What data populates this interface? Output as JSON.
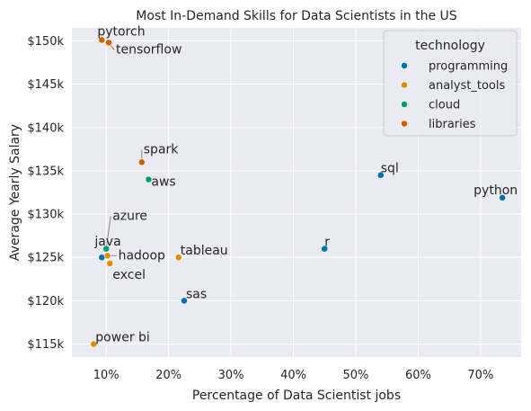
{
  "chart_data": {
    "type": "scatter",
    "title": "Most In-Demand Skills for Data Scientists in the US",
    "xlabel": "Percentage of Data Scientist jobs",
    "ylabel": "Average Yearly Salary",
    "xlim": [
      0.045,
      0.765
    ],
    "ylim": [
      113500,
      151500
    ],
    "x_ticks": [
      0.1,
      0.2,
      0.3,
      0.4,
      0.5,
      0.6,
      0.7
    ],
    "x_tick_labels": [
      "10%",
      "20%",
      "30%",
      "40%",
      "50%",
      "60%",
      "70%"
    ],
    "y_ticks": [
      115000,
      120000,
      125000,
      130000,
      135000,
      140000,
      145000,
      150000
    ],
    "y_tick_labels": [
      "$115k",
      "$120k",
      "$125k",
      "$130k",
      "$135k",
      "$140k",
      "$145k",
      "$150k"
    ],
    "grid": true,
    "legend": {
      "title": "technology",
      "placement": "top-right",
      "entries": [
        {
          "name": "programming",
          "color": "#0173b2"
        },
        {
          "name": "analyst_tools",
          "color": "#de8f05"
        },
        {
          "name": "cloud",
          "color": "#029e73"
        },
        {
          "name": "libraries",
          "color": "#d55e00"
        }
      ]
    },
    "points": [
      {
        "skill": "python",
        "technology": "programming",
        "x": 0.735,
        "y": 131900
      },
      {
        "skill": "sql",
        "technology": "programming",
        "x": 0.54,
        "y": 134500
      },
      {
        "skill": "r",
        "technology": "programming",
        "x": 0.45,
        "y": 126000
      },
      {
        "skill": "sas",
        "technology": "programming",
        "x": 0.225,
        "y": 120000
      },
      {
        "skill": "java",
        "technology": "programming",
        "x": 0.093,
        "y": 125000
      },
      {
        "skill": "tableau",
        "technology": "analyst_tools",
        "x": 0.216,
        "y": 125000
      },
      {
        "skill": "excel",
        "technology": "analyst_tools",
        "x": 0.106,
        "y": 124300
      },
      {
        "skill": "hadoop",
        "technology": "analyst_tools",
        "x": 0.102,
        "y": 125200
      },
      {
        "skill": "power bi",
        "technology": "analyst_tools",
        "x": 0.08,
        "y": 115000
      },
      {
        "skill": "aws",
        "technology": "cloud",
        "x": 0.168,
        "y": 134000
      },
      {
        "skill": "azure",
        "technology": "cloud",
        "x": 0.1,
        "y": 126000
      },
      {
        "skill": "spark",
        "technology": "libraries",
        "x": 0.157,
        "y": 136000
      },
      {
        "skill": "pytorch",
        "technology": "libraries",
        "x": 0.093,
        "y": 150100
      },
      {
        "skill": "tensorflow",
        "technology": "libraries",
        "x": 0.104,
        "y": 149800
      }
    ]
  }
}
